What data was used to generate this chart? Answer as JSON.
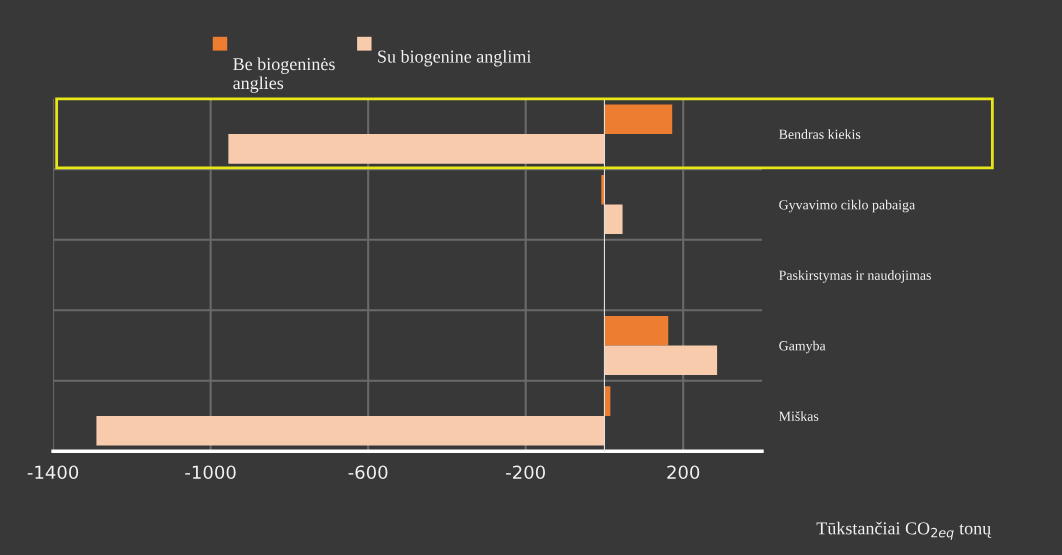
{
  "chart_data": {
    "type": "bar",
    "orientation": "horizontal",
    "categories": [
      "Bendras kiekis",
      "Gyvavimo ciklo pabaiga",
      "Paskirstymas ir naudojimas",
      "Gamyba",
      "Miškas"
    ],
    "series": [
      {
        "name": "Be biogeninės\nanglies",
        "color": "#ed7d31",
        "values": [
          172,
          -8,
          null,
          162,
          15
        ]
      },
      {
        "name": "Su biogenine anglimi",
        "color": "#f8cbad",
        "values": [
          -955,
          46,
          null,
          286,
          -1290
        ]
      }
    ],
    "xlim": [
      -1400,
      400
    ],
    "xticks": [
      -1400,
      -1000,
      -600,
      -200,
      200
    ],
    "xlabel": "Tūkstančiai CO$_{2eq}$ tonų",
    "grid": true,
    "legend": "top"
  }
}
